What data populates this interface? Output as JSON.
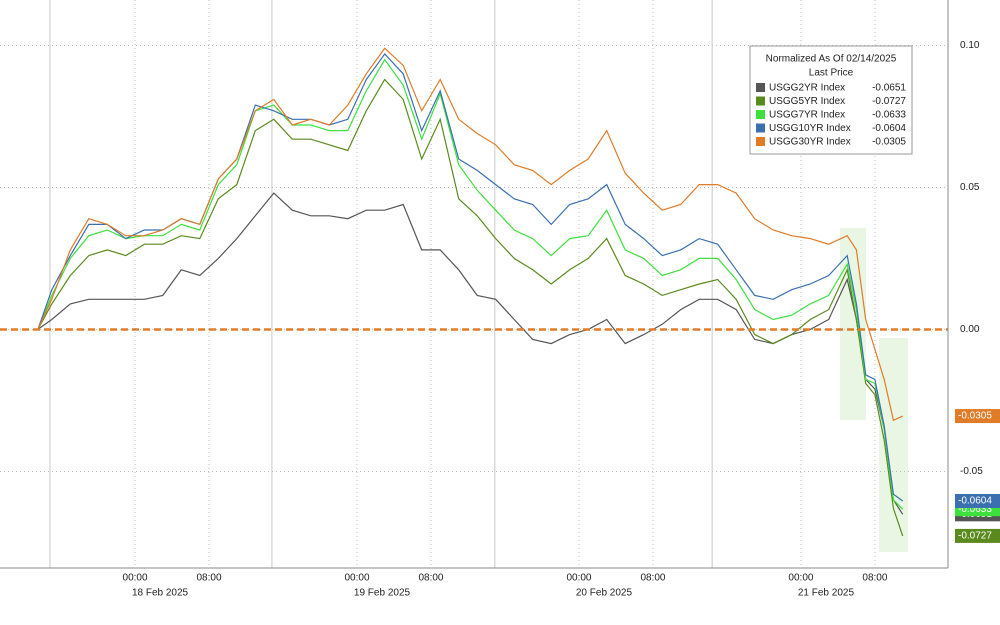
{
  "chart_data": {
    "type": "line",
    "legend_title": "Normalized As Of 02/14/2025",
    "legend_subtitle": "Last Price",
    "x": [
      -10.5,
      -9,
      -7,
      -5,
      -3,
      -1,
      1,
      3,
      5,
      7,
      9,
      11,
      13,
      15,
      17,
      19,
      21,
      23,
      25,
      27,
      29,
      31,
      33,
      35,
      37,
      39,
      41,
      43,
      45,
      47,
      49,
      51,
      53,
      55,
      57,
      59,
      61,
      63,
      65,
      67,
      69,
      71,
      73,
      75,
      77,
      78,
      79,
      80,
      81,
      82,
      83
    ],
    "xlim": [
      -14.6,
      87.9
    ],
    "xticks": [
      {
        "value": 0,
        "label": "00:00"
      },
      {
        "value": 8,
        "label": "08:00"
      },
      {
        "value": 24,
        "label": "00:00"
      },
      {
        "value": 32,
        "label": "08:00"
      },
      {
        "value": 48,
        "label": "00:00"
      },
      {
        "value": 56,
        "label": "08:00"
      },
      {
        "value": 72,
        "label": "00:00"
      },
      {
        "value": 80,
        "label": "08:00"
      }
    ],
    "date_labels": [
      {
        "value": 0,
        "label": "18 Feb 2025"
      },
      {
        "value": 24,
        "label": "19 Feb 2025"
      },
      {
        "value": 48,
        "label": "20 Feb 2025"
      },
      {
        "value": 72,
        "label": "21 Feb 2025"
      }
    ],
    "session_breaks": [
      -9.2,
      14.8,
      38.9,
      62.4
    ],
    "ylim": [
      -0.084,
      0.116
    ],
    "yticks": [
      {
        "value": 0.1,
        "label": "0.10"
      },
      {
        "value": 0.05,
        "label": "0.05"
      },
      {
        "value": 0,
        "label": "0.00"
      },
      {
        "value": -0.05,
        "label": "-0.05"
      }
    ],
    "grid": true,
    "series": [
      {
        "name": "USGG2YR Index",
        "color": "#555555",
        "values": [
          0,
          0.0035,
          0.009,
          0.0106,
          0.0106,
          0.0106,
          0.0106,
          0.012,
          0.021,
          0.019,
          0.025,
          0.032,
          0.04,
          0.048,
          0.042,
          0.04,
          0.04,
          0.039,
          0.042,
          0.042,
          0.044,
          0.028,
          0.028,
          0.021,
          0.012,
          0.0106,
          0.0035,
          -0.0035,
          -0.005,
          -0.0018,
          0,
          0.0035,
          -0.005,
          -0.0018,
          0.0018,
          0.007,
          0.0106,
          0.0106,
          0.007,
          -0.0035,
          -0.005,
          -0.0018,
          0,
          0.0035,
          0.0176,
          0.0035,
          -0.0176,
          -0.021,
          -0.035,
          -0.06,
          -0.0651
        ]
      },
      {
        "name": "USGG5YR Index",
        "color": "#5a8a1e",
        "values": [
          0,
          0.009,
          0.019,
          0.026,
          0.028,
          0.026,
          0.03,
          0.03,
          0.033,
          0.032,
          0.046,
          0.051,
          0.07,
          0.074,
          0.067,
          0.067,
          0.065,
          0.063,
          0.077,
          0.088,
          0.081,
          0.06,
          0.074,
          0.046,
          0.04,
          0.032,
          0.025,
          0.021,
          0.016,
          0.021,
          0.025,
          0.032,
          0.019,
          0.016,
          0.012,
          0.014,
          0.016,
          0.0176,
          0.0106,
          -0.0018,
          -0.005,
          -0.0018,
          0.0035,
          0.007,
          0.021,
          0.0035,
          -0.019,
          -0.023,
          -0.039,
          -0.063,
          -0.0727
        ]
      },
      {
        "name": "USGG7YR Index",
        "color": "#3ee03e",
        "values": [
          0,
          0.012,
          0.025,
          0.033,
          0.035,
          0.032,
          0.033,
          0.033,
          0.037,
          0.035,
          0.051,
          0.058,
          0.077,
          0.079,
          0.072,
          0.072,
          0.07,
          0.07,
          0.084,
          0.095,
          0.086,
          0.067,
          0.083,
          0.058,
          0.049,
          0.042,
          0.035,
          0.032,
          0.026,
          0.032,
          0.033,
          0.042,
          0.028,
          0.025,
          0.019,
          0.021,
          0.025,
          0.025,
          0.0176,
          0.007,
          0.0035,
          0.005,
          0.009,
          0.012,
          0.023,
          0.007,
          -0.0176,
          -0.019,
          -0.035,
          -0.06,
          -0.0633
        ]
      },
      {
        "name": "USGG10YR Index",
        "color": "#3a6fb0",
        "values": [
          0,
          0.014,
          0.026,
          0.037,
          0.037,
          0.032,
          0.035,
          0.035,
          0.039,
          0.037,
          0.053,
          0.06,
          0.079,
          0.077,
          0.074,
          0.074,
          0.072,
          0.074,
          0.088,
          0.097,
          0.09,
          0.07,
          0.084,
          0.06,
          0.056,
          0.051,
          0.046,
          0.044,
          0.037,
          0.044,
          0.046,
          0.051,
          0.037,
          0.032,
          0.026,
          0.028,
          0.032,
          0.03,
          0.021,
          0.012,
          0.0106,
          0.014,
          0.016,
          0.019,
          0.026,
          0.009,
          -0.016,
          -0.0176,
          -0.034,
          -0.058,
          -0.0604
        ]
      },
      {
        "name": "USGG30YR Index",
        "color": "#e07b28",
        "values": [
          0,
          0.0106,
          0.028,
          0.039,
          0.037,
          0.033,
          0.033,
          0.035,
          0.039,
          0.037,
          0.053,
          0.06,
          0.077,
          0.081,
          0.072,
          0.074,
          0.072,
          0.079,
          0.09,
          0.099,
          0.093,
          0.077,
          0.088,
          0.074,
          0.069,
          0.065,
          0.058,
          0.056,
          0.051,
          0.056,
          0.06,
          0.07,
          0.055,
          0.048,
          0.042,
          0.044,
          0.051,
          0.051,
          0.048,
          0.039,
          0.035,
          0.033,
          0.032,
          0.03,
          0.033,
          0.028,
          0.0035,
          -0.007,
          -0.0176,
          -0.032,
          -0.0305
        ]
      }
    ]
  }
}
